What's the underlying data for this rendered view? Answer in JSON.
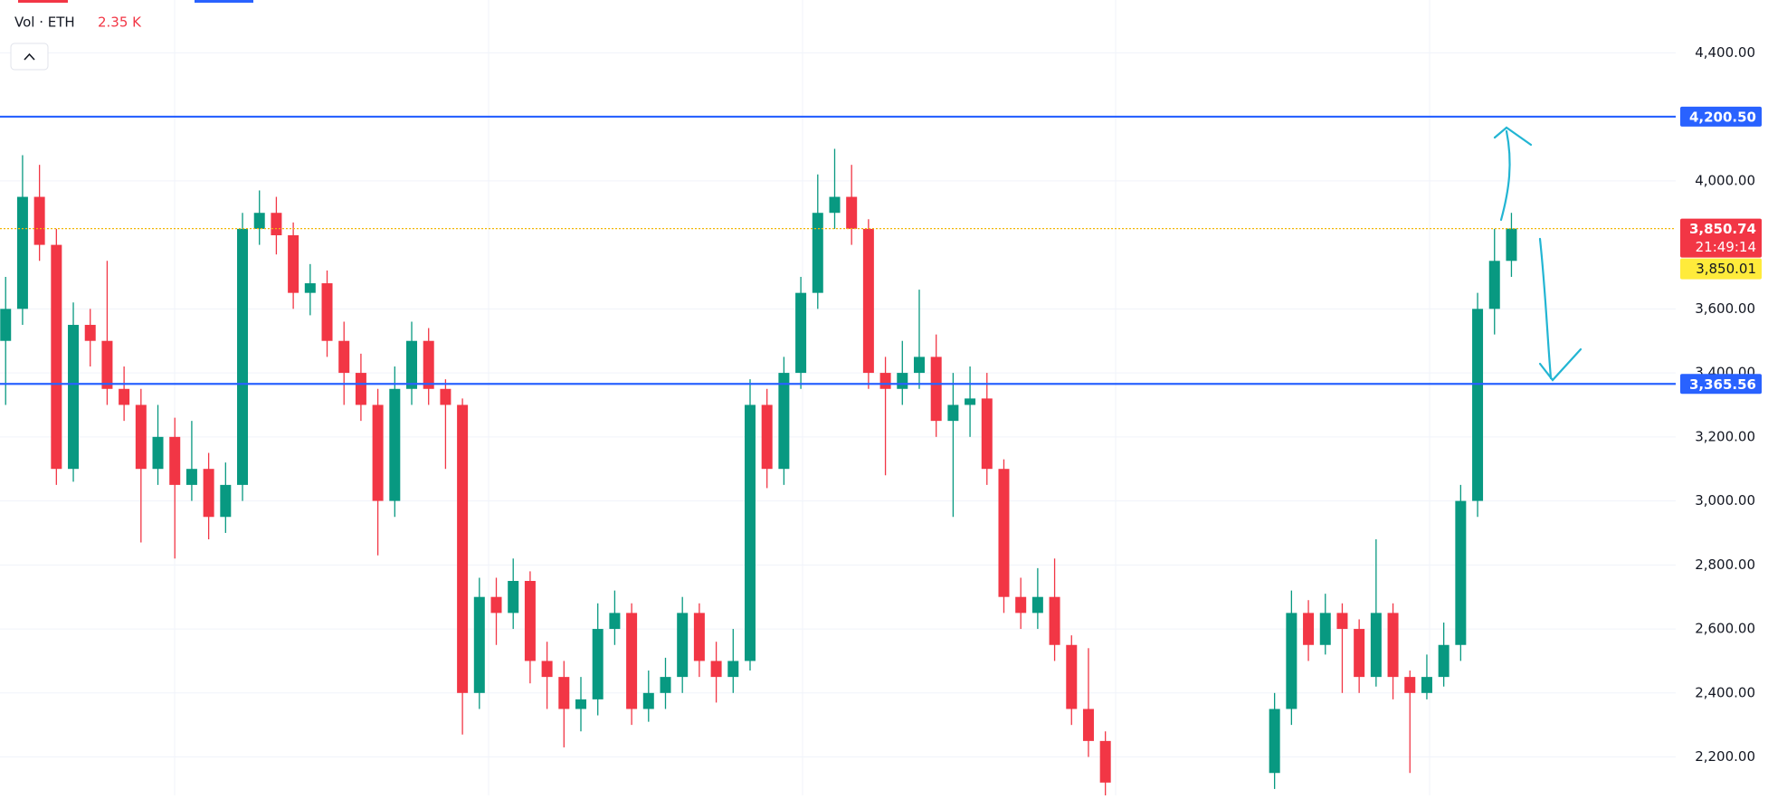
{
  "chart_data": {
    "type": "candlestick",
    "legend": {
      "name": "Vol · ETH",
      "value": 2350,
      "value_label": "2.35 K"
    },
    "ylim": [
      2080,
      4565
    ],
    "yticks": [
      {
        "value": 2200,
        "label": "2,200.00"
      },
      {
        "value": 2400,
        "label": "2,400.00"
      },
      {
        "value": 2600,
        "label": "2,600.00"
      },
      {
        "value": 2800,
        "label": "2,800.00"
      },
      {
        "value": 3000,
        "label": "3,000.00"
      },
      {
        "value": 3200,
        "label": "3,200.00"
      },
      {
        "value": 3400,
        "label": "3,400.00"
      },
      {
        "value": 3600,
        "label": "3,600.00"
      },
      {
        "value": 4000,
        "label": "4,000.00"
      },
      {
        "value": 4400,
        "label": "4,400.00"
      }
    ],
    "grid": true,
    "up_color": "#089981",
    "down_color": "#f23645",
    "open": [
      3500,
      3600,
      3950,
      3800,
      3100,
      3550,
      3500,
      3350,
      3300,
      3100,
      3200,
      3050,
      3100,
      2950,
      3050,
      3850,
      3900,
      3830,
      3650,
      3680,
      3500,
      3400,
      3300,
      3000,
      3350,
      3500,
      3350,
      3300,
      2400,
      2700,
      2650,
      2750,
      2500,
      2450,
      2350,
      2380,
      2600,
      2650,
      2350,
      2400,
      2450,
      2650,
      2500,
      2450,
      2500,
      3300,
      3100,
      3400,
      3650,
      3900,
      3950,
      3850,
      3400,
      3350,
      3400,
      3450,
      3250,
      3300,
      3320,
      3100,
      2700,
      2650,
      2700,
      2550,
      2350,
      2250,
      null,
      null,
      null,
      null,
      null,
      null,
      null,
      null,
      null,
      2150,
      2350,
      2650,
      2550,
      2650,
      2600,
      2450,
      2650,
      2450,
      2400,
      2450,
      2550,
      3000,
      3600,
      3750
    ],
    "high": [
      3700,
      4080,
      4050,
      3850,
      3620,
      3600,
      3750,
      3420,
      3350,
      3300,
      3260,
      3250,
      3150,
      3120,
      3900,
      3970,
      3950,
      3870,
      3740,
      3720,
      3560,
      3460,
      3350,
      3420,
      3560,
      3540,
      3380,
      3320,
      2760,
      2760,
      2820,
      2780,
      2560,
      2500,
      2450,
      2680,
      2720,
      2680,
      2470,
      2510,
      2700,
      2680,
      2560,
      2600,
      3380,
      3350,
      3450,
      3700,
      4020,
      4100,
      4050,
      3880,
      3450,
      3500,
      3660,
      3520,
      3400,
      3420,
      3400,
      3130,
      2760,
      2790,
      2820,
      2580,
      2540,
      2280,
      null,
      null,
      null,
      null,
      null,
      null,
      null,
      null,
      null,
      2400,
      2720,
      2690,
      2710,
      2680,
      2630,
      2880,
      2680,
      2470,
      2520,
      2620,
      3050,
      3650,
      3850,
      3900
    ],
    "low": [
      3300,
      3550,
      3750,
      3050,
      3060,
      3420,
      3300,
      3250,
      2870,
      3050,
      2820,
      3000,
      2880,
      2900,
      3000,
      3800,
      3770,
      3600,
      3580,
      3450,
      3300,
      3250,
      2830,
      2950,
      3300,
      3300,
      3100,
      2270,
      2350,
      2550,
      2600,
      2430,
      2350,
      2230,
      2280,
      2330,
      2550,
      2300,
      2310,
      2350,
      2400,
      2450,
      2370,
      2400,
      2470,
      3040,
      3050,
      3350,
      3600,
      3850,
      3800,
      3350,
      3080,
      3300,
      3350,
      3200,
      2950,
      3200,
      3050,
      2650,
      2600,
      2600,
      2500,
      2300,
      2200,
      2080,
      null,
      null,
      null,
      null,
      null,
      null,
      null,
      null,
      null,
      2100,
      2300,
      2500,
      2520,
      2400,
      2400,
      2420,
      2380,
      2150,
      2380,
      2420,
      2500,
      2950,
      3520,
      3700
    ],
    "close": [
      3600,
      3950,
      3800,
      3100,
      3550,
      3500,
      3350,
      3300,
      3100,
      3200,
      3050,
      3100,
      2950,
      3050,
      3850,
      3900,
      3830,
      3650,
      3680,
      3500,
      3400,
      3300,
      3000,
      3350,
      3500,
      3350,
      3300,
      2400,
      2700,
      2650,
      2750,
      2500,
      2450,
      2350,
      2380,
      2600,
      2650,
      2350,
      2400,
      2450,
      2650,
      2500,
      2450,
      2500,
      3300,
      3100,
      3400,
      3650,
      3900,
      3950,
      3850,
      3400,
      3350,
      3400,
      3450,
      3250,
      3300,
      3320,
      3100,
      2700,
      2650,
      2700,
      2550,
      2350,
      2250,
      2120,
      null,
      null,
      null,
      null,
      null,
      null,
      null,
      null,
      null,
      2350,
      2650,
      2550,
      2650,
      2600,
      2450,
      2650,
      2450,
      2400,
      2450,
      2550,
      3000,
      3600,
      3750,
      3850.74
    ],
    "lines": [
      {
        "value": 4200.5,
        "label": "4,200.50",
        "color": "#2962ff"
      },
      {
        "value": 3365.56,
        "label": "3,365.56",
        "color": "#2962ff"
      }
    ],
    "price_line": {
      "value": 3850.74,
      "label": "3,850.74",
      "countdown": "21:49:14",
      "color": "#f23645",
      "line_color": "#f2b705"
    },
    "bid": {
      "value": 3850.01,
      "label": "3,850.01",
      "color": "#ffeb3b"
    }
  }
}
